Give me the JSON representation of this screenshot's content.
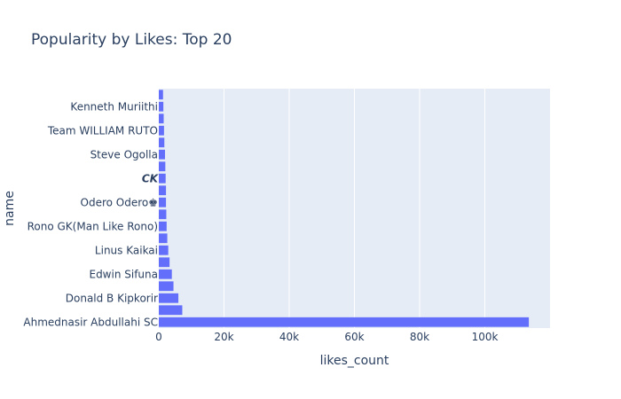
{
  "chart_data": {
    "type": "bar",
    "orientation": "horizontal",
    "title": "Popularity by Likes: Top 20",
    "xlabel": "likes_count",
    "ylabel": "name",
    "xlim": [
      0,
      120000
    ],
    "xticks": [
      0,
      20000,
      40000,
      60000,
      80000,
      100000
    ],
    "xtick_labels": [
      "0",
      "20k",
      "40k",
      "60k",
      "80k",
      "100k"
    ],
    "grid": true,
    "categories": [
      "Ahmednasir Abdullahi SC",
      "",
      "Donald B Kipkorir",
      "",
      "Edwin Sifuna",
      "",
      "Linus Kaikai",
      "",
      "Rono GK(Man Like Rono)",
      "",
      "Odero Odero♚",
      "",
      "𝘾𝙆",
      "",
      "Steve Ogolla",
      "",
      "Team WILLIAM RUTO",
      "",
      "Kenneth Muriithi",
      ""
    ],
    "values": [
      113500,
      7200,
      6000,
      4500,
      4000,
      3300,
      2900,
      2600,
      2400,
      2300,
      2200,
      2200,
      2100,
      2000,
      1900,
      1700,
      1600,
      1500,
      1400,
      1300
    ],
    "colors": {
      "bar": "#636efa",
      "plot_bg": "#e5ecf6",
      "text": "#2a3f5f",
      "grid": "#ffffff"
    }
  }
}
